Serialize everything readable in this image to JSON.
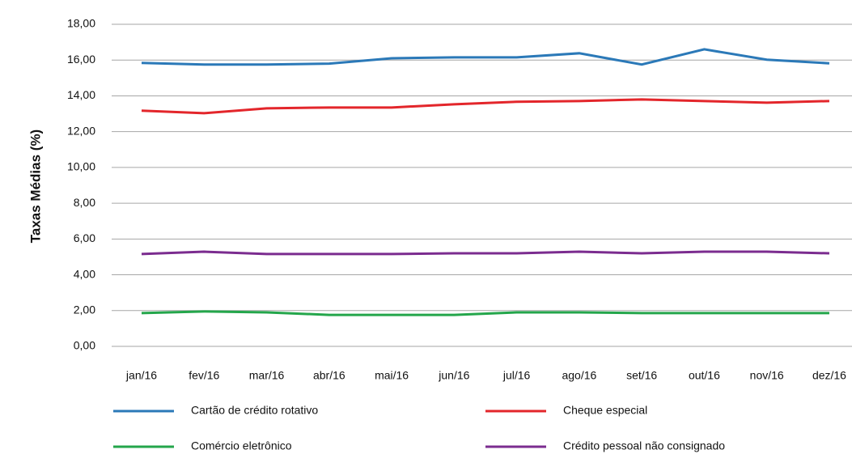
{
  "chart_data": {
    "type": "line",
    "y_label": "Taxas Médias (%)",
    "categories": [
      "jan/16",
      "fev/16",
      "mar/16",
      "abr/16",
      "mai/16",
      "jun/16",
      "jul/16",
      "ago/16",
      "set/16",
      "out/16",
      "nov/16",
      "dez/16"
    ],
    "series": [
      {
        "name": "Cartão de crédito rotativo",
        "color": "#2b79b8",
        "values": [
          15.84,
          15.75,
          15.75,
          15.8,
          16.1,
          16.15,
          16.15,
          16.38,
          15.75,
          16.6,
          16.02,
          15.82
        ]
      },
      {
        "name": "Cheque especial",
        "color": "#e3262b",
        "values": [
          13.17,
          13.03,
          13.3,
          13.35,
          13.35,
          13.53,
          13.67,
          13.71,
          13.8,
          13.71,
          13.62,
          13.71
        ]
      },
      {
        "name": "Comércio eletrônico",
        "color": "#24a64b",
        "values": [
          1.86,
          1.95,
          1.9,
          1.76,
          1.76,
          1.76,
          1.9,
          1.9,
          1.86,
          1.86,
          1.86,
          1.86
        ]
      },
      {
        "name": "Crédito pessoal não consignado",
        "color": "#7b2c8f",
        "values": [
          5.16,
          5.29,
          5.16,
          5.16,
          5.16,
          5.2,
          5.2,
          5.29,
          5.2,
          5.29,
          5.29,
          5.2
        ]
      }
    ],
    "ylim": [
      0,
      18
    ],
    "yticks": [
      {
        "value": 0,
        "label": "0,00"
      },
      {
        "value": 2,
        "label": "2,00"
      },
      {
        "value": 4,
        "label": "4,00"
      },
      {
        "value": 6,
        "label": "6,00"
      },
      {
        "value": 8,
        "label": "8,00"
      },
      {
        "value": 10,
        "label": "10,00"
      },
      {
        "value": 12,
        "label": "12,00"
      },
      {
        "value": 14,
        "label": "14,00"
      },
      {
        "value": 16,
        "label": "16,00"
      },
      {
        "value": 18,
        "label": "18,00"
      }
    ],
    "grid": true,
    "legend": "bottom"
  }
}
